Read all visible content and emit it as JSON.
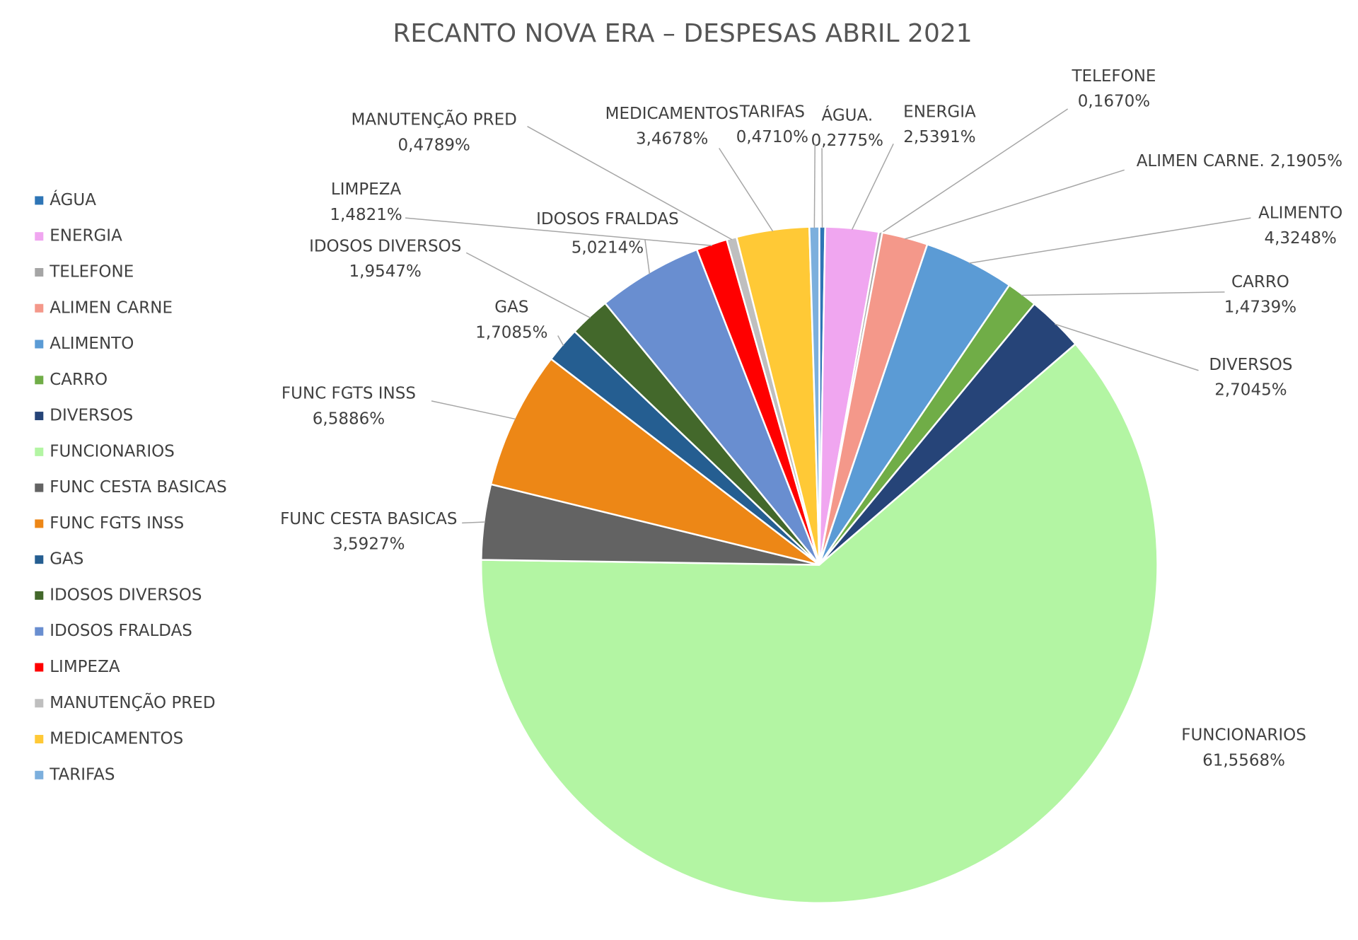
{
  "chart_data": {
    "type": "pie",
    "title": "RECANTO NOVA ERA – DESPESAS ABRIL 2021",
    "categories": [
      "ÁGUA",
      "ENERGIA",
      "TELEFONE",
      "ALIMEN CARNE",
      "ALIMENTO",
      "CARRO",
      "DIVERSOS",
      "FUNCIONARIOS",
      "FUNC CESTA BASICAS",
      "FUNC FGTS INSS",
      "GAS",
      "IDOSOS DIVERSOS",
      "IDOSOS FRALDAS",
      "LIMPEZA",
      "MANUTENÇÃO PRED",
      "MEDICAMENTOS",
      "TARIFAS"
    ],
    "label_names": [
      "ÁGUA.",
      "ENERGIA",
      "TELEFONE",
      "ALIMEN CARNE.",
      "ALIMENTO",
      "CARRO",
      "DIVERSOS",
      "FUNCIONARIOS",
      "FUNC CESTA BASICAS",
      "FUNC FGTS INSS",
      "GAS",
      "IDOSOS DIVERSOS",
      "IDOSOS FRALDAS",
      "LIMPEZA",
      "MANUTENÇÃO PRED",
      "MEDICAMENTOS",
      "TARIFAS"
    ],
    "values": [
      0.2775,
      2.5391,
      0.167,
      2.1905,
      4.3248,
      1.4739,
      2.7045,
      61.5568,
      3.5927,
      6.5886,
      1.7085,
      1.9547,
      5.0214,
      1.4821,
      0.4789,
      3.4678,
      0.471
    ],
    "value_labels": [
      "0,2775%",
      "2,5391%",
      "0,1670%",
      "2,1905%",
      "4,3248%",
      "1,4739%",
      "2,7045%",
      "61,5568%",
      "3,5927%",
      "6,5886%",
      "1,7085%",
      "1,9547%",
      "5,0214%",
      "1,4821%",
      "0,4789%",
      "3,4678%",
      "0,4710%"
    ],
    "colors": [
      "#2e75b6",
      "#f0a6f0",
      "#a5a5a5",
      "#f4988a",
      "#5b9bd5",
      "#70ad47",
      "#264478",
      "#b3f5a3",
      "#636363",
      "#ed8716",
      "#255e91",
      "#43682b",
      "#698ed0",
      "#ff0000",
      "#bfbfbf",
      "#ffc936",
      "#7cafdd"
    ],
    "legend": "left"
  }
}
